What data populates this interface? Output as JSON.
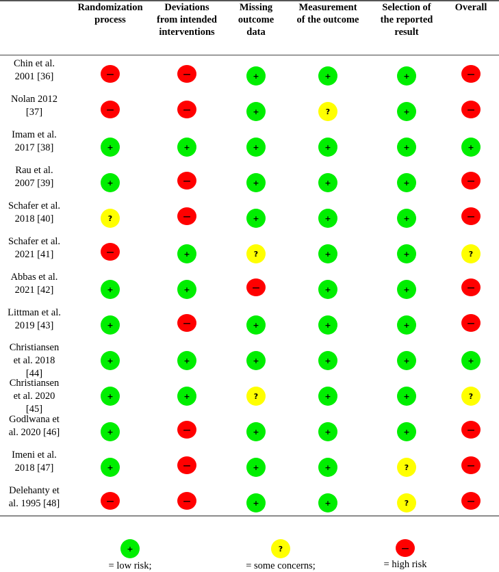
{
  "columns": [
    {
      "label": "Randomization process",
      "lines": [
        "Randomization",
        "process"
      ]
    },
    {
      "label": "Deviations from intended interventions",
      "lines": [
        "Deviations",
        "from intended",
        "interventions"
      ]
    },
    {
      "label": "Missing outcome data",
      "lines": [
        "Missing",
        "outcome",
        "data"
      ]
    },
    {
      "label": "Measurement of the outcome",
      "lines": [
        "Measurement",
        "of the outcome"
      ]
    },
    {
      "label": "Selection of the reported result",
      "lines": [
        "Selection of",
        "the reported",
        "result"
      ]
    },
    {
      "label": "Overall",
      "lines": [
        "Overall"
      ]
    }
  ],
  "symbols": {
    "low": "+",
    "some": "?",
    "high": "—"
  },
  "colors": {
    "low": "#00ee00",
    "some": "#ffff00",
    "high": "#ff0000"
  },
  "legend": [
    {
      "key": "low",
      "symbol": "+",
      "label": "= low risk;"
    },
    {
      "key": "some",
      "symbol": "?",
      "label": "= some concerns;"
    },
    {
      "key": "high",
      "symbol": "—",
      "label": "= high risk"
    }
  ],
  "chart_data": {
    "type": "table",
    "title": "Risk of bias assessment (RoB 2)",
    "columns": [
      "Randomization process",
      "Deviations from intended interventions",
      "Missing outcome data",
      "Measurement of the outcome",
      "Selection of the reported result",
      "Overall"
    ],
    "rows": [
      {
        "study": "Chin et al. 2001 [36]",
        "lines": [
          "Chin et al.",
          "2001 [36]"
        ],
        "ratings": [
          "high",
          "high",
          "low",
          "low",
          "low",
          "high"
        ]
      },
      {
        "study": "Nolan 2012 [37]",
        "lines": [
          "Nolan 2012",
          "[37]"
        ],
        "ratings": [
          "high",
          "high",
          "low",
          "some",
          "low",
          "high"
        ]
      },
      {
        "study": "Imam et al. 2017 [38]",
        "lines": [
          "Imam et al.",
          "2017 [38]"
        ],
        "ratings": [
          "low",
          "low",
          "low",
          "low",
          "low",
          "low"
        ]
      },
      {
        "study": "Rau et al. 2007 [39]",
        "lines": [
          "Rau et al.",
          "2007 [39]"
        ],
        "ratings": [
          "low",
          "high",
          "low",
          "low",
          "low",
          "high"
        ]
      },
      {
        "study": "Schafer et al. 2018 [40]",
        "lines": [
          "Schafer et al.",
          "2018 [40]"
        ],
        "ratings": [
          "some",
          "high",
          "low",
          "low",
          "low",
          "high"
        ]
      },
      {
        "study": "Schafer et al. 2021 [41]",
        "lines": [
          "Schafer et al.",
          "2021 [41]"
        ],
        "ratings": [
          "high",
          "low",
          "some",
          "low",
          "low",
          "some"
        ]
      },
      {
        "study": "Abbas et al. 2021 [42]",
        "lines": [
          "Abbas et al.",
          "2021 [42]"
        ],
        "ratings": [
          "low",
          "low",
          "high",
          "low",
          "low",
          "high"
        ]
      },
      {
        "study": "Littman et al. 2019 [43]",
        "lines": [
          "Littman et al.",
          "2019 [43]"
        ],
        "ratings": [
          "low",
          "high",
          "low",
          "low",
          "low",
          "high"
        ]
      },
      {
        "study": "Christiansen et al. 2018 [44]",
        "lines": [
          "Christiansen",
          "et al. 2018",
          "[44]"
        ],
        "ratings": [
          "low",
          "low",
          "low",
          "low",
          "low",
          "low"
        ]
      },
      {
        "study": "Christiansen et al. 2020 [45]",
        "lines": [
          "Christiansen",
          "et al. 2020",
          "[45]"
        ],
        "ratings": [
          "low",
          "low",
          "some",
          "low",
          "low",
          "some"
        ]
      },
      {
        "study": "Godlwana et al. 2020 [46]",
        "lines": [
          "Godlwana et",
          "al. 2020 [46]"
        ],
        "ratings": [
          "low",
          "high",
          "low",
          "low",
          "low",
          "high"
        ]
      },
      {
        "study": "Imeni et al. 2018 [47]",
        "lines": [
          "Imeni et al.",
          "2018 [47]"
        ],
        "ratings": [
          "low",
          "high",
          "low",
          "low",
          "some",
          "high"
        ]
      },
      {
        "study": "Delehanty et al. 1995 [48]",
        "lines": [
          "Delehanty et",
          "al. 1995 [48]"
        ],
        "ratings": [
          "high",
          "high",
          "low",
          "low",
          "some",
          "high"
        ]
      }
    ],
    "legend": {
      "low": "low risk",
      "some": "some concerns",
      "high": "high risk"
    }
  }
}
